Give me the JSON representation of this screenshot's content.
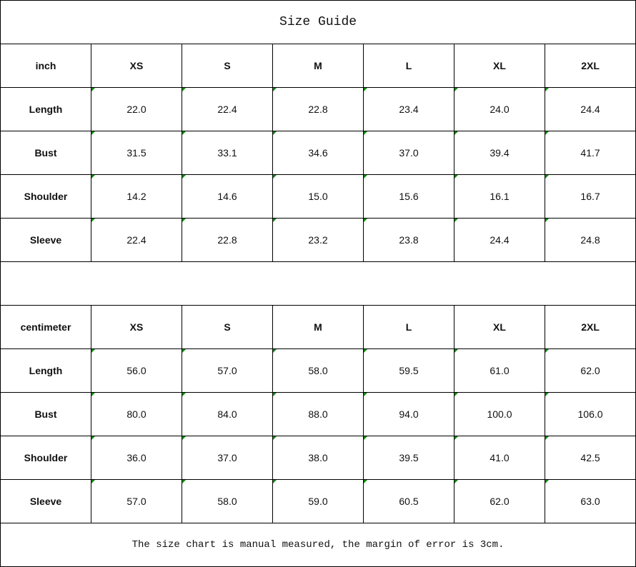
{
  "title": "Size Guide",
  "sizes": [
    "XS",
    "S",
    "M",
    "L",
    "XL",
    "2XL"
  ],
  "inch_table": {
    "unit": "inch",
    "rows": [
      {
        "label": "Length",
        "values": [
          "22.0",
          "22.4",
          "22.8",
          "23.4",
          "24.0",
          "24.4"
        ]
      },
      {
        "label": "Bust",
        "values": [
          "31.5",
          "33.1",
          "34.6",
          "37.0",
          "39.4",
          "41.7"
        ]
      },
      {
        "label": "Shoulder",
        "values": [
          "14.2",
          "14.6",
          "15.0",
          "15.6",
          "16.1",
          "16.7"
        ]
      },
      {
        "label": "Sleeve",
        "values": [
          "22.4",
          "22.8",
          "23.2",
          "23.8",
          "24.4",
          "24.8"
        ]
      }
    ]
  },
  "cm_table": {
    "unit": "centimeter",
    "rows": [
      {
        "label": "Length",
        "values": [
          "56.0",
          "57.0",
          "58.0",
          "59.5",
          "61.0",
          "62.0"
        ]
      },
      {
        "label": "Bust",
        "values": [
          "80.0",
          "84.0",
          "88.0",
          "94.0",
          "100.0",
          "106.0"
        ]
      },
      {
        "label": "Shoulder",
        "values": [
          "36.0",
          "37.0",
          "38.0",
          "39.5",
          "41.0",
          "42.5"
        ]
      },
      {
        "label": "Sleeve",
        "values": [
          "57.0",
          "58.0",
          "59.0",
          "60.5",
          "62.0",
          "63.0"
        ]
      }
    ]
  },
  "note": "The size chart is manual measured, the margin of error is 3cm.",
  "colors": {
    "error_marker": "#0a8a0a",
    "border": "#000000"
  }
}
